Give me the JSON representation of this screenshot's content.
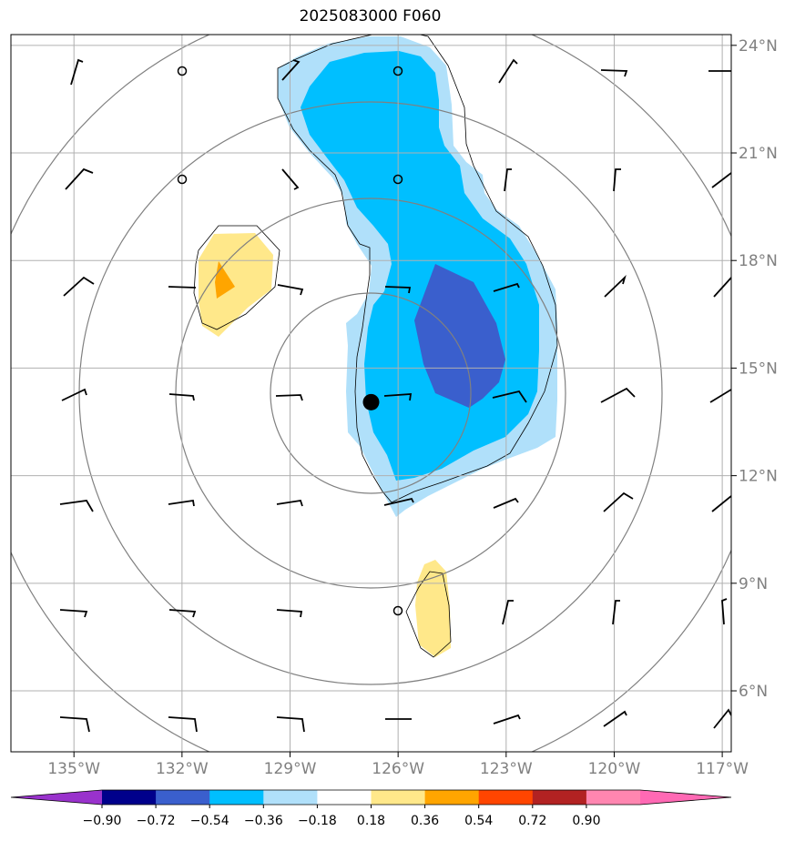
{
  "title": "2025083000 F060",
  "longitude_labels": [
    "135°W",
    "132°W",
    "129°W",
    "126°W",
    "123°W",
    "120°W",
    "117°W"
  ],
  "latitude_labels": [
    "24°N",
    "21°N",
    "18°N",
    "15°N",
    "12°N",
    "9°N",
    "6°N"
  ],
  "longitudes": [
    -135,
    -132,
    -129,
    -126,
    -123,
    -120,
    -117
  ],
  "latitudes": [
    24,
    21,
    18,
    15,
    12,
    9,
    6
  ],
  "extent": {
    "lon_min": -136.75,
    "lon_max": -116.75,
    "lat_min": 4.3,
    "lat_max": 24.3
  },
  "storm_center": {
    "lon": -126.75,
    "lat": 14.05
  },
  "colorbar": {
    "levels": [
      "−0.90",
      "−0.72",
      "−0.54",
      "−0.36",
      "−0.18",
      "0.18",
      "0.36",
      "0.54",
      "0.72",
      "0.90"
    ],
    "colors": [
      "#9932cc",
      "#00008b",
      "#3a5fcd",
      "#00bfff",
      "#b0e0fa",
      "#ffffff",
      "#ffe88a",
      "#ffa500",
      "#ff4500",
      "#b22222",
      "#ff86b0",
      "#ff69b4"
    ]
  },
  "colors": {
    "shade_light": "#b0e0fa",
    "shade_mid": "#00bfff",
    "shade_dark": "#3a5fcd",
    "pos_light": "#ffe88a",
    "pos_mid": "#ffa500",
    "grid": "#b0b0b0",
    "ring": "#808080"
  }
}
